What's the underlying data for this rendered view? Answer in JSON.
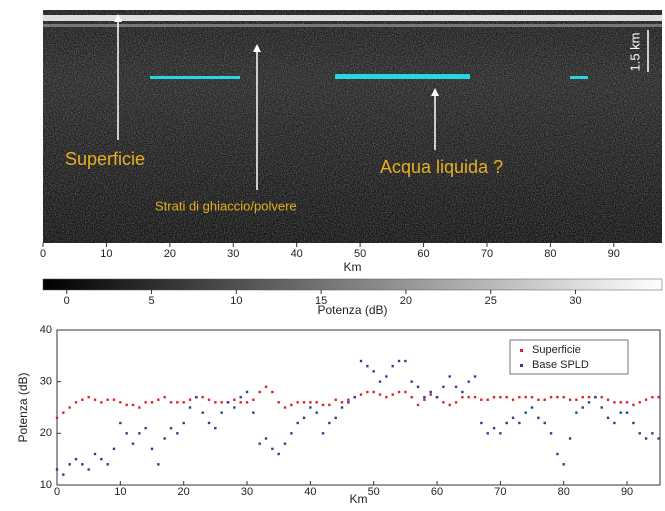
{
  "chart_data": [
    {
      "type": "image",
      "xlabel": "Km",
      "xlim": [
        0,
        97.6
      ],
      "xticks": [
        0,
        10,
        20,
        30,
        40,
        50,
        60,
        70,
        80,
        90
      ],
      "annotations": [
        "Superficie",
        "Strati di ghiaccio/polvere",
        "Acqua liquida ?",
        "1.5 km"
      ]
    },
    {
      "type": "colorbar",
      "xlabel": "Potenza (dB)",
      "xlim": [
        -1.4,
        35.1
      ],
      "xticks": [
        0,
        5,
        10,
        15,
        20,
        25,
        30
      ]
    },
    {
      "type": "scatter",
      "xlabel": "Km",
      "ylabel": "Potenza (dB)",
      "xlim": [
        0,
        95.2
      ],
      "ylim": [
        10,
        40
      ],
      "xticks": [
        0,
        10,
        20,
        30,
        40,
        50,
        60,
        70,
        80,
        90
      ],
      "yticks": [
        10,
        20,
        30,
        40
      ],
      "legend": "top-right",
      "x": [
        0,
        1,
        2,
        3,
        4,
        5,
        6,
        7,
        8,
        9,
        10,
        11,
        12,
        13,
        14,
        15,
        16,
        17,
        18,
        19,
        20,
        21,
        22,
        23,
        24,
        25,
        26,
        27,
        28,
        29,
        30,
        31,
        32,
        33,
        34,
        35,
        36,
        37,
        38,
        39,
        40,
        41,
        42,
        43,
        44,
        45,
        46,
        47,
        48,
        49,
        50,
        51,
        52,
        53,
        54,
        55,
        56,
        57,
        58,
        59,
        60,
        61,
        62,
        63,
        64,
        65,
        66,
        67,
        68,
        69,
        70,
        71,
        72,
        73,
        74,
        75,
        76,
        77,
        78,
        79,
        80,
        81,
        82,
        83,
        84,
        85,
        86,
        87,
        88,
        89,
        90,
        91,
        92,
        93,
        94,
        95
      ],
      "series": [
        {
          "name": "Superficie",
          "color": "#e0202a",
          "values": [
            23,
            24,
            25,
            26,
            26.5,
            27,
            26.5,
            26,
            26.5,
            26.5,
            26,
            25.5,
            25.5,
            25,
            26,
            26,
            26.5,
            27,
            26,
            26,
            26,
            26.5,
            27,
            27,
            26.5,
            26,
            26,
            26,
            26.5,
            26,
            26,
            26.5,
            28,
            29,
            28,
            26,
            25,
            25.5,
            26,
            26,
            26,
            26,
            25.5,
            25.5,
            26.5,
            26,
            26.5,
            27,
            27.5,
            28,
            28,
            27.5,
            27,
            27.5,
            28,
            28,
            27,
            25.5,
            26.5,
            27.5,
            27,
            26,
            25.5,
            26,
            27,
            27,
            27,
            26.5,
            26.5,
            27,
            27,
            27,
            26.5,
            27,
            27,
            27,
            26.5,
            26.5,
            27,
            27,
            27,
            26.5,
            26.5,
            27,
            27,
            27,
            27,
            26.5,
            26,
            26,
            26,
            25.5,
            26,
            26.5,
            27,
            27
          ]
        },
        {
          "name": "Base SPLD",
          "color": "#2a3f8f",
          "values": [
            13,
            12,
            14,
            15,
            14,
            13,
            16,
            15,
            14,
            17,
            22,
            20,
            18,
            20,
            21,
            17,
            14,
            19,
            21,
            20,
            22,
            25,
            27,
            24,
            22,
            21,
            24,
            26,
            25,
            27,
            28,
            24,
            18,
            19,
            17,
            16,
            18,
            20,
            22,
            23,
            25,
            24,
            20,
            22,
            23,
            25,
            26,
            27,
            34,
            33,
            32,
            30,
            31,
            33,
            34,
            34,
            30,
            29,
            27,
            28,
            27,
            29,
            31,
            29,
            28,
            30,
            31,
            22,
            20,
            21,
            20,
            22,
            23,
            22,
            24,
            25,
            23,
            22,
            20,
            16,
            14,
            19,
            24,
            25,
            26,
            27,
            25,
            23,
            22,
            24,
            24,
            22,
            20,
            19,
            20,
            19
          ]
        }
      ]
    }
  ]
}
